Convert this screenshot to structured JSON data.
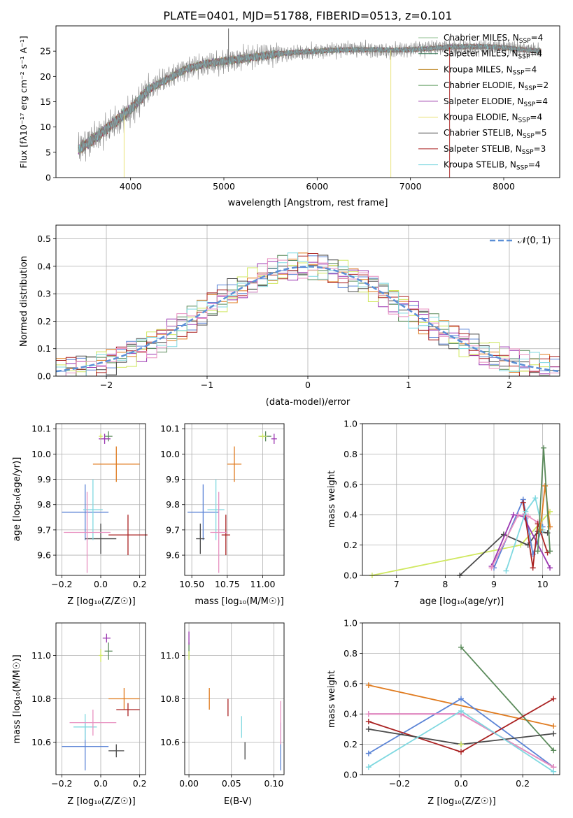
{
  "figure": {
    "title": "PLATE=0401, MJD=51788, FIBERID=0513, z=0.101",
    "colors": {
      "chabrier_miles": "#8fbf8f",
      "salpeter_miles": "#3a7a5a",
      "kroupa_miles": "#c08a2a",
      "chabrier_elodie": "#5a9a5a",
      "salpeter_elodie": "#9a3aaa",
      "kroupa_elodie": "#e8e070",
      "chabrier_stelib": "#555555",
      "salpeter_stelib": "#aa2222",
      "kroupa_stelib": "#7fd8e0",
      "blue": "#5b84d6",
      "orange": "#e07b1f",
      "green": "#5a8a5a",
      "purple": "#9a35b0",
      "yellowgreen": "#d0e860",
      "darkgray": "#4a4a4a",
      "red": "#aa2222",
      "cyan": "#7fd8e0",
      "pink": "#e890c0",
      "gauss": "#5b8fd6"
    }
  },
  "chart_data": [
    {
      "id": "spectrum",
      "type": "line",
      "xlabel": "wavelength [Angstrom, rest frame]",
      "ylabel": "Flux [fλ10⁻¹⁷ erg cm⁻² s⁻¹ A⁻¹]",
      "xlim": [
        3200,
        8600
      ],
      "ylim": [
        0,
        30
      ],
      "xticks": [
        4000,
        5000,
        6000,
        7000,
        8000
      ],
      "yticks": [
        0,
        5,
        10,
        15,
        20,
        25
      ],
      "grid": false,
      "legend_position": "top-right",
      "continuum_x": [
        3440,
        3600,
        3800,
        4000,
        4200,
        4400,
        4600,
        4800,
        5000,
        5200,
        5400,
        5600,
        5800,
        6000,
        6200,
        6400,
        6600,
        6800,
        7000,
        7200,
        7400,
        7600,
        7800,
        8000,
        8200,
        8400
      ],
      "continuum_y": [
        5.5,
        7.5,
        10.5,
        13.5,
        17.5,
        19.5,
        21.5,
        22.5,
        23.0,
        23.5,
        24.0,
        24.5,
        24.8,
        25.0,
        25.2,
        25.3,
        25.3,
        25.2,
        25.3,
        25.5,
        25.8,
        25.9,
        25.9,
        25.7,
        25.3,
        25.0
      ],
      "series": [
        {
          "name": "Chabrier MILES, N_SSP=4",
          "label_main": "Chabrier MILES, N",
          "label_sub": "SSP",
          "label_end": "=4",
          "color_key": "chabrier_miles"
        },
        {
          "name": "Salpeter MILES, N_SSP=4",
          "label_main": "Salpeter MILES, N",
          "label_sub": "SSP",
          "label_end": "=4",
          "color_key": "salpeter_miles"
        },
        {
          "name": "Kroupa MILES, N_SSP=4",
          "label_main": "Kroupa MILES, N",
          "label_sub": "SSP",
          "label_end": "=4",
          "color_key": "kroupa_miles"
        },
        {
          "name": "Chabrier ELODIE, N_SSP=2",
          "label_main": "Chabrier ELODIE, N",
          "label_sub": "SSP",
          "label_end": "=2",
          "color_key": "chabrier_elodie"
        },
        {
          "name": "Salpeter ELODIE, N_SSP=4",
          "label_main": "Salpeter ELODIE, N",
          "label_sub": "SSP",
          "label_end": "=4",
          "color_key": "salpeter_elodie"
        },
        {
          "name": "Kroupa ELODIE, N_SSP=4",
          "label_main": "Kroupa ELODIE, N",
          "label_sub": "SSP",
          "label_end": "=4",
          "color_key": "kroupa_elodie"
        },
        {
          "name": "Chabrier STELIB, N_SSP=5",
          "label_main": "Chabrier STELIB, N",
          "label_sub": "SSP",
          "label_end": "=5",
          "color_key": "chabrier_stelib"
        },
        {
          "name": "Salpeter STELIB, N_SSP=3",
          "label_main": "Salpeter STELIB, N",
          "label_sub": "SSP",
          "label_end": "=3",
          "color_key": "salpeter_stelib"
        },
        {
          "name": "Kroupa STELIB, N_SSP=4",
          "label_main": "Kroupa STELIB, N",
          "label_sub": "SSP",
          "label_end": "=4",
          "color_key": "kroupa_stelib"
        }
      ]
    },
    {
      "id": "residuals",
      "type": "step",
      "xlabel": "(data-model)/error",
      "ylabel": "Normed distribution",
      "xlim": [
        -2.5,
        2.5
      ],
      "ylim": [
        0,
        0.55
      ],
      "xticks": [
        -2,
        -1,
        0,
        1,
        2
      ],
      "yticks": [
        0.0,
        0.1,
        0.2,
        0.3,
        0.4,
        0.5
      ],
      "grid": true,
      "bin_width": 0.1,
      "gauss_label": "𝒩(0, 1)",
      "hist_colors": [
        "blue",
        "orange",
        "green",
        "purple",
        "yellowgreen",
        "darkgray",
        "red",
        "cyan",
        "pink"
      ]
    },
    {
      "id": "age_vs_Z",
      "type": "errorbar",
      "xlabel": "Z [log₁₀(Z/Z☉)]",
      "ylabel": "age  [log₁₀(age/yr)]",
      "xlim": [
        -0.23,
        0.23
      ],
      "ylim": [
        9.52,
        10.12
      ],
      "xticks": [
        -0.2,
        0.0,
        0.2
      ],
      "yticks": [
        9.6,
        9.7,
        9.8,
        9.9,
        10.0,
        10.1
      ],
      "grid": true,
      "points": [
        {
          "x": -0.08,
          "y": 9.77,
          "xerr": 0.12,
          "yerr": 0.11,
          "color": "blue"
        },
        {
          "x": 0.08,
          "y": 9.96,
          "xerr": 0.12,
          "yerr": 0.07,
          "color": "orange"
        },
        {
          "x": 0.04,
          "y": 10.07,
          "xerr": 0.02,
          "yerr": 0.02,
          "color": "green"
        },
        {
          "x": 0.02,
          "y": 10.06,
          "xerr": 0.03,
          "yerr": 0.02,
          "color": "purple"
        },
        {
          "x": 0.0,
          "y": 10.07,
          "xerr": 0.01,
          "yerr": 0.01,
          "color": "yellowgreen"
        },
        {
          "x": 0.0,
          "y": 9.665,
          "xerr": 0.08,
          "yerr": 0.06,
          "color": "darkgray"
        },
        {
          "x": 0.14,
          "y": 9.68,
          "xerr": 0.1,
          "yerr": 0.08,
          "color": "red"
        },
        {
          "x": -0.04,
          "y": 9.78,
          "xerr": 0.05,
          "yerr": 0.12,
          "color": "cyan"
        },
        {
          "x": -0.07,
          "y": 9.69,
          "xerr": 0.12,
          "yerr": 0.16,
          "color": "pink"
        }
      ]
    },
    {
      "id": "age_vs_mass",
      "type": "errorbar",
      "xlabel": "mass [log₁₀(M/M☉)]",
      "ylabel": "",
      "xlim": [
        10.45,
        11.15
      ],
      "ylim": [
        9.52,
        10.12
      ],
      "xticks": [
        10.5,
        10.75,
        11.0
      ],
      "yticks": [
        9.6,
        9.7,
        9.8,
        9.9,
        10.0,
        10.1
      ],
      "grid": true,
      "points": [
        {
          "x": 10.58,
          "y": 9.77,
          "xerr": 0.11,
          "yerr": 0.11,
          "color": "blue"
        },
        {
          "x": 10.8,
          "y": 9.96,
          "xerr": 0.05,
          "yerr": 0.07,
          "color": "orange"
        },
        {
          "x": 11.02,
          "y": 10.07,
          "xerr": 0.04,
          "yerr": 0.02,
          "color": "green"
        },
        {
          "x": 11.08,
          "y": 10.06,
          "xerr": 0.02,
          "yerr": 0.02,
          "color": "purple"
        },
        {
          "x": 11.0,
          "y": 10.07,
          "xerr": 0.03,
          "yerr": 0.01,
          "color": "yellowgreen"
        },
        {
          "x": 10.56,
          "y": 9.665,
          "xerr": 0.03,
          "yerr": 0.06,
          "color": "darkgray"
        },
        {
          "x": 10.74,
          "y": 9.68,
          "xerr": 0.03,
          "yerr": 0.08,
          "color": "red"
        },
        {
          "x": 10.67,
          "y": 9.78,
          "xerr": 0.06,
          "yerr": 0.12,
          "color": "cyan"
        },
        {
          "x": 10.69,
          "y": 9.69,
          "xerr": 0.06,
          "yerr": 0.16,
          "color": "pink"
        }
      ]
    },
    {
      "id": "weight_vs_age",
      "type": "line",
      "xlabel": "age  [log₁₀(age/yr)]",
      "ylabel": "mass weight",
      "xlim": [
        6.3,
        10.35
      ],
      "ylim": [
        0,
        1.0
      ],
      "xticks": [
        7,
        8,
        9,
        10
      ],
      "yticks": [
        0.0,
        0.2,
        0.4,
        0.6,
        0.8,
        1.0
      ],
      "grid": true,
      "series": [
        {
          "color": "yellowgreen",
          "x": [
            6.5,
            9.55,
            10.15
          ],
          "y": [
            0.0,
            0.2,
            0.42
          ]
        },
        {
          "color": "darkgray",
          "x": [
            8.3,
            9.2,
            9.7,
            9.9,
            10.1
          ],
          "y": [
            0.0,
            0.27,
            0.2,
            0.29,
            0.28
          ]
        },
        {
          "color": "blue",
          "x": [
            9.0,
            9.6,
            9.8,
            10.0
          ],
          "y": [
            0.05,
            0.5,
            0.14,
            0.32
          ]
        },
        {
          "color": "purple",
          "x": [
            8.95,
            9.4,
            9.6,
            10.15
          ],
          "y": [
            0.06,
            0.4,
            0.39,
            0.05
          ]
        },
        {
          "color": "pink",
          "x": [
            8.95,
            9.5,
            9.7,
            9.9
          ],
          "y": [
            0.05,
            0.4,
            0.39,
            0.35
          ]
        },
        {
          "color": "red",
          "x": [
            9.6,
            9.8,
            9.9,
            10.1
          ],
          "y": [
            0.48,
            0.05,
            0.34,
            0.15
          ]
        },
        {
          "color": "cyan",
          "x": [
            9.25,
            9.65,
            9.85,
            10.0
          ],
          "y": [
            0.03,
            0.42,
            0.51,
            0.3
          ]
        },
        {
          "color": "orange",
          "x": [
            9.95,
            10.05,
            10.15
          ],
          "y": [
            0.3,
            0.59,
            0.32
          ]
        },
        {
          "color": "green",
          "x": [
            9.9,
            10.02,
            10.15
          ],
          "y": [
            0.16,
            0.84,
            0.16
          ]
        }
      ]
    },
    {
      "id": "mass_vs_Z",
      "type": "errorbar",
      "xlabel": "Z [log₁₀(Z/Z☉)]",
      "ylabel": "mass [log₁₀(M/M☉)]",
      "xlim": [
        -0.23,
        0.23
      ],
      "ylim": [
        10.45,
        11.15
      ],
      "xticks": [
        -0.2,
        0.0,
        0.2
      ],
      "yticks": [
        10.6,
        10.8,
        11.0
      ],
      "grid": true,
      "points": [
        {
          "x": -0.08,
          "y": 10.58,
          "xerr": 0.12,
          "yerr": 0.11,
          "color": "blue"
        },
        {
          "x": 0.12,
          "y": 10.8,
          "xerr": 0.08,
          "yerr": 0.05,
          "color": "orange"
        },
        {
          "x": 0.04,
          "y": 11.02,
          "xerr": 0.02,
          "yerr": 0.04,
          "color": "green"
        },
        {
          "x": 0.03,
          "y": 11.08,
          "xerr": 0.02,
          "yerr": 0.02,
          "color": "purple"
        },
        {
          "x": 0.0,
          "y": 11.0,
          "xerr": 0.01,
          "yerr": 0.03,
          "color": "yellowgreen"
        },
        {
          "x": 0.08,
          "y": 10.56,
          "xerr": 0.04,
          "yerr": 0.03,
          "color": "darkgray"
        },
        {
          "x": 0.14,
          "y": 10.75,
          "xerr": 0.06,
          "yerr": 0.03,
          "color": "red"
        },
        {
          "x": -0.08,
          "y": 10.67,
          "xerr": 0.06,
          "yerr": 0.06,
          "color": "cyan"
        },
        {
          "x": -0.04,
          "y": 10.69,
          "xerr": 0.12,
          "yerr": 0.06,
          "color": "pink"
        }
      ]
    },
    {
      "id": "mass_vs_ebv",
      "type": "errorbar",
      "xlabel": "E(B-V)",
      "ylabel": "",
      "xlim": [
        -0.005,
        0.112
      ],
      "ylim": [
        10.45,
        11.15
      ],
      "xticks": [
        0.0,
        0.05,
        0.1
      ],
      "yticks": [
        10.6,
        10.8,
        11.0
      ],
      "grid": true,
      "points": [
        {
          "x": 0.108,
          "y": 10.58,
          "xerr": 0,
          "yerr": 0.11,
          "color": "blue"
        },
        {
          "x": 0.024,
          "y": 10.8,
          "xerr": 0,
          "yerr": 0.05,
          "color": "orange"
        },
        {
          "x": 0.0,
          "y": 11.02,
          "xerr": 0,
          "yerr": 0.04,
          "color": "green"
        },
        {
          "x": 0.0,
          "y": 11.08,
          "xerr": 0,
          "yerr": 0.03,
          "color": "purple"
        },
        {
          "x": 0.0,
          "y": 11.0,
          "xerr": 0,
          "yerr": 0.02,
          "color": "yellowgreen"
        },
        {
          "x": 0.066,
          "y": 10.56,
          "xerr": 0,
          "yerr": 0.04,
          "color": "darkgray"
        },
        {
          "x": 0.046,
          "y": 10.76,
          "xerr": 0,
          "yerr": 0.04,
          "color": "red"
        },
        {
          "x": 0.062,
          "y": 10.67,
          "xerr": 0,
          "yerr": 0.05,
          "color": "cyan"
        },
        {
          "x": 0.108,
          "y": 10.69,
          "xerr": 0,
          "yerr": 0.1,
          "color": "pink"
        }
      ]
    },
    {
      "id": "weight_vs_Z",
      "type": "line",
      "xlabel": "Z [log₁₀(Z/Z☉)]",
      "ylabel": "mass weight",
      "xlim": [
        -0.32,
        0.32
      ],
      "ylim": [
        0,
        1.0
      ],
      "xticks": [
        -0.2,
        0.0,
        0.2
      ],
      "yticks": [
        0.0,
        0.2,
        0.4,
        0.6,
        0.8,
        1.0
      ],
      "grid": true,
      "series": [
        {
          "color": "orange",
          "x": [
            -0.3,
            0.3
          ],
          "y": [
            0.59,
            0.32
          ]
        },
        {
          "color": "green",
          "x": [
            0.0,
            0.3
          ],
          "y": [
            0.84,
            0.16
          ]
        },
        {
          "color": "blue",
          "x": [
            -0.3,
            0.0,
            0.3
          ],
          "y": [
            0.14,
            0.5,
            0.05
          ]
        },
        {
          "color": "purple",
          "x": [
            -0.3,
            0.0,
            0.3
          ],
          "y": [
            0.4,
            0.4,
            0.05
          ]
        },
        {
          "color": "pink",
          "x": [
            -0.3,
            0.0,
            0.3
          ],
          "y": [
            0.4,
            0.4,
            0.05
          ]
        },
        {
          "color": "red",
          "x": [
            -0.3,
            0.0,
            0.3
          ],
          "y": [
            0.35,
            0.15,
            0.5
          ]
        },
        {
          "color": "darkgray",
          "x": [
            -0.3,
            0.0,
            0.3
          ],
          "y": [
            0.3,
            0.2,
            0.27
          ]
        },
        {
          "color": "cyan",
          "x": [
            -0.3,
            0.0,
            0.3
          ],
          "y": [
            0.05,
            0.42,
            0.02
          ]
        },
        {
          "color": "yellowgreen",
          "x": [
            0.0
          ],
          "y": [
            0.2
          ]
        }
      ]
    }
  ]
}
